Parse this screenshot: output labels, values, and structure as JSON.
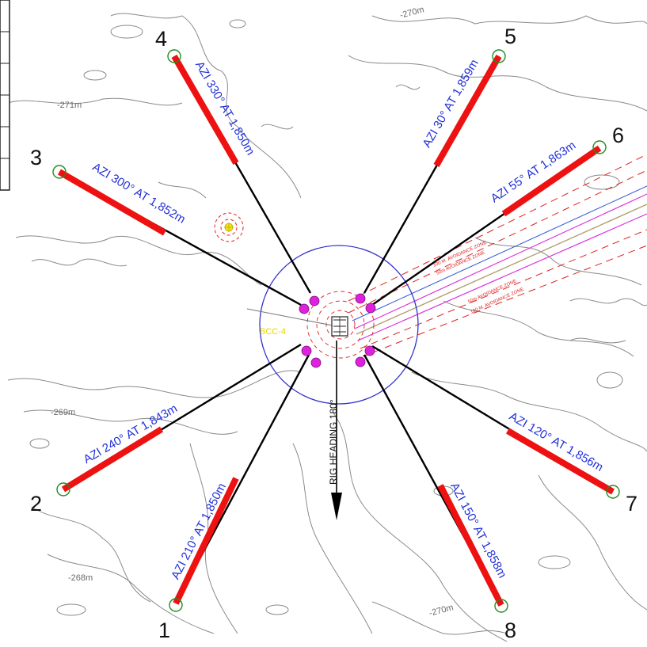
{
  "legs": [
    {
      "num": "1",
      "label": "AZI 210° AT 1,850m"
    },
    {
      "num": "2",
      "label": "AZI 240° AT 1,843m"
    },
    {
      "num": "3",
      "label": "AZI 300° AT 1,852m"
    },
    {
      "num": "4",
      "label": "AZI 330° AT 1,850m"
    },
    {
      "num": "5",
      "label": "AZI 30° AT 1,859m"
    },
    {
      "num": "6",
      "label": "AZI 55° AT 1,863m"
    },
    {
      "num": "7",
      "label": "AZI 120° AT 1,856m"
    },
    {
      "num": "8",
      "label": "AZI 150° AT 1,858m"
    }
  ],
  "rig_heading": "RIG HEADING 180°",
  "well_label": "BCC-4",
  "depth_labels": [
    "-270m",
    "-271m",
    "-269m",
    "-268m",
    "-270m"
  ],
  "zone_labels": [
    "100 M. AVOIDANCE ZONE",
    "50m AVOIDANCE ZONE",
    "50m AVOIDANCE ZONE",
    "100 M. AVOIDANCE ZONE"
  ],
  "colors": {
    "mooring_line": "#000000",
    "anchor_segment": "#ee1111",
    "fairlead": "#dd22dd",
    "anchor_ring": "#1e8e1e",
    "azimuth_text": "#2230d8",
    "circle": "#3333cc",
    "avoidance_zone": "#e02020",
    "pipeline_blue": "#3355dd",
    "pipeline_magenta": "#dd33dd",
    "pipeline_tan": "#b0a070",
    "contour": "#8a8a8a"
  }
}
